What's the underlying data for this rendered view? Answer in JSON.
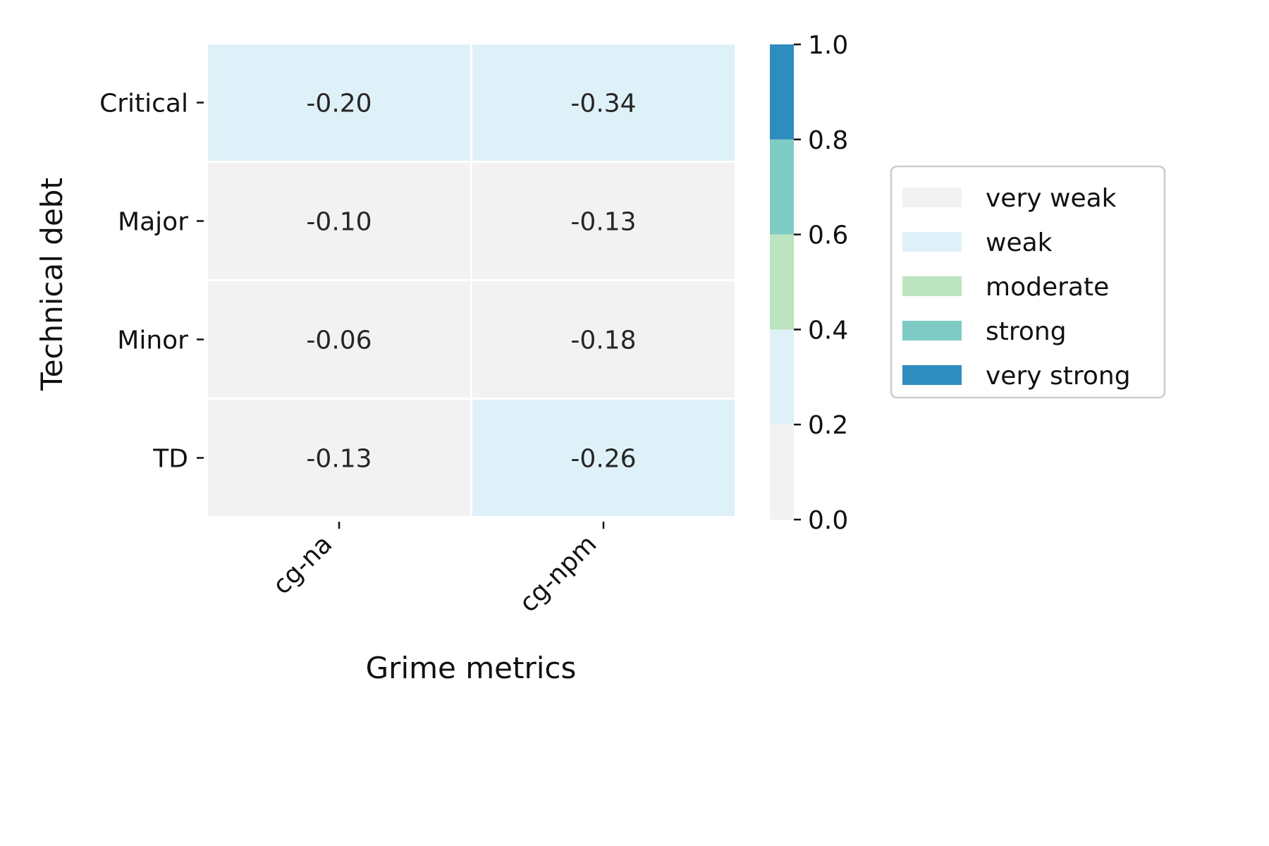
{
  "chart_data": {
    "type": "heatmap",
    "xlabel": "Grime metrics",
    "ylabel": "Technical debt",
    "x_categories": [
      "cg-na",
      "cg-npm"
    ],
    "y_categories": [
      "Critical",
      "Major",
      "Minor",
      "TD"
    ],
    "values": [
      [
        -0.2,
        -0.34
      ],
      [
        -0.1,
        -0.13
      ],
      [
        -0.06,
        -0.18
      ],
      [
        -0.13,
        -0.26
      ]
    ],
    "value_labels": [
      [
        "-0.20",
        "-0.34"
      ],
      [
        "-0.10",
        "-0.13"
      ],
      [
        "-0.06",
        "-0.18"
      ],
      [
        "-0.13",
        "-0.26"
      ]
    ],
    "color_scale": {
      "range": [
        0.0,
        1.0
      ],
      "ticks": [
        "0.0",
        "0.2",
        "0.4",
        "0.6",
        "0.8",
        "1.0"
      ],
      "bins": [
        {
          "from": 0.0,
          "to": 0.2,
          "color": "#f2f2f2",
          "label": "very weak"
        },
        {
          "from": 0.2,
          "to": 0.4,
          "color": "#dff1f8",
          "label": "weak"
        },
        {
          "from": 0.4,
          "to": 0.6,
          "color": "#bce4bf",
          "label": "moderate"
        },
        {
          "from": 0.6,
          "to": 0.8,
          "color": "#7ecbc4",
          "label": "strong"
        },
        {
          "from": 0.8,
          "to": 1.0,
          "color": "#2f8cbe",
          "label": "very strong"
        }
      ]
    },
    "legend": {
      "placement": "right"
    }
  }
}
